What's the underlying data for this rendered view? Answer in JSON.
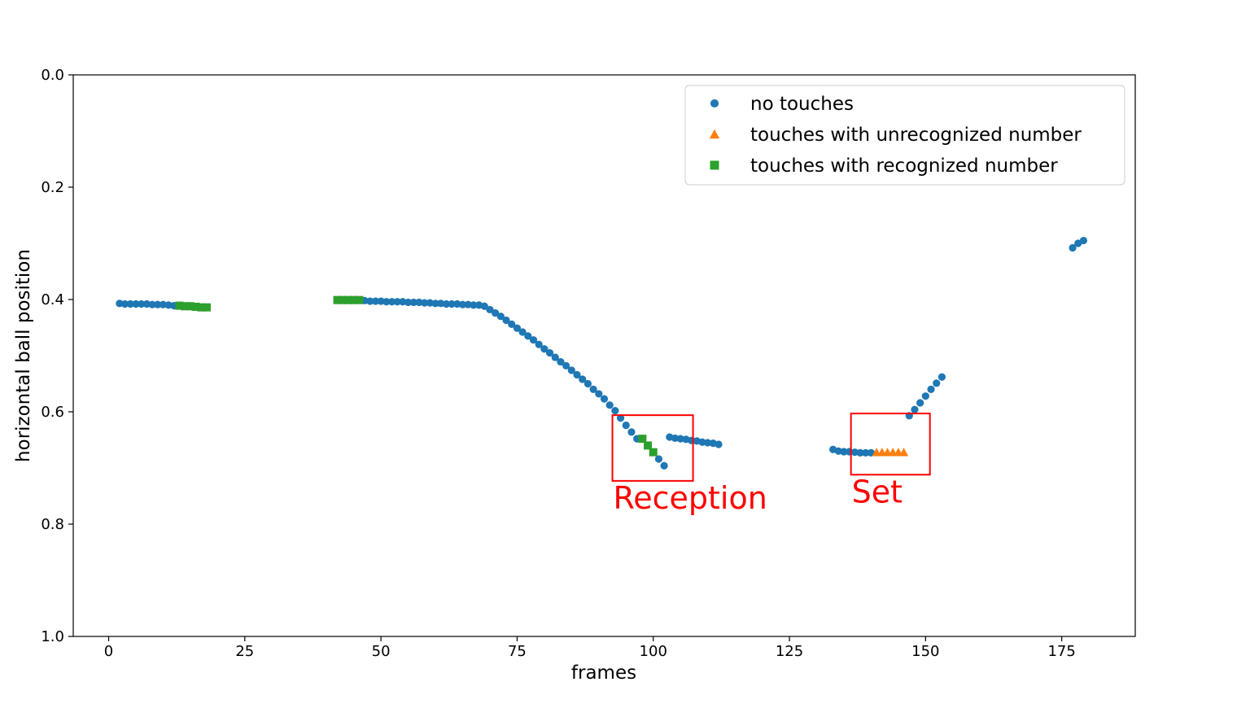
{
  "chart_data": {
    "type": "scatter",
    "title": "",
    "xlabel": "frames",
    "ylabel": "horizontal ball position",
    "xlim": [
      -6.5,
      188.5
    ],
    "ylim": [
      1.0,
      0.0
    ],
    "y_inverted": true,
    "xticks": [
      0,
      25,
      50,
      75,
      100,
      125,
      150,
      175
    ],
    "xtick_labels": [
      "0",
      "25",
      "50",
      "75",
      "100",
      "125",
      "150",
      "175"
    ],
    "yticks": [
      0.0,
      0.2,
      0.4,
      0.6,
      0.8,
      1.0
    ],
    "ytick_labels": [
      "0.0",
      "0.2",
      "0.4",
      "0.6",
      "0.8",
      "1.0"
    ],
    "grid": false,
    "legend_position": "top-right",
    "series": [
      {
        "name": "no touches",
        "marker": "circle",
        "color": "#1f77b4",
        "points": [
          [
            2,
            0.407
          ],
          [
            3,
            0.408
          ],
          [
            4,
            0.408
          ],
          [
            5,
            0.408
          ],
          [
            6,
            0.408
          ],
          [
            7,
            0.408
          ],
          [
            8,
            0.409
          ],
          [
            9,
            0.409
          ],
          [
            10,
            0.409
          ],
          [
            11,
            0.41
          ],
          [
            12,
            0.411
          ],
          [
            47,
            0.402
          ],
          [
            48,
            0.403
          ],
          [
            49,
            0.403
          ],
          [
            50,
            0.403
          ],
          [
            51,
            0.404
          ],
          [
            52,
            0.404
          ],
          [
            53,
            0.404
          ],
          [
            54,
            0.404
          ],
          [
            55,
            0.405
          ],
          [
            56,
            0.405
          ],
          [
            57,
            0.405
          ],
          [
            58,
            0.406
          ],
          [
            59,
            0.406
          ],
          [
            60,
            0.407
          ],
          [
            61,
            0.407
          ],
          [
            62,
            0.408
          ],
          [
            63,
            0.408
          ],
          [
            64,
            0.408
          ],
          [
            65,
            0.409
          ],
          [
            66,
            0.409
          ],
          [
            67,
            0.41
          ],
          [
            68,
            0.41
          ],
          [
            69,
            0.412
          ],
          [
            70,
            0.418
          ],
          [
            71,
            0.424
          ],
          [
            72,
            0.43
          ],
          [
            73,
            0.437
          ],
          [
            74,
            0.444
          ],
          [
            75,
            0.451
          ],
          [
            76,
            0.458
          ],
          [
            77,
            0.465
          ],
          [
            78,
            0.472
          ],
          [
            79,
            0.48
          ],
          [
            80,
            0.488
          ],
          [
            81,
            0.495
          ],
          [
            82,
            0.503
          ],
          [
            83,
            0.511
          ],
          [
            84,
            0.518
          ],
          [
            85,
            0.526
          ],
          [
            86,
            0.534
          ],
          [
            87,
            0.542
          ],
          [
            88,
            0.55
          ],
          [
            89,
            0.56
          ],
          [
            90,
            0.568
          ],
          [
            91,
            0.577
          ],
          [
            92,
            0.588
          ],
          [
            93,
            0.598
          ],
          [
            94,
            0.611
          ],
          [
            95,
            0.624
          ],
          [
            96,
            0.636
          ],
          [
            97,
            0.648
          ],
          [
            101,
            0.684
          ],
          [
            102,
            0.696
          ],
          [
            103,
            0.645
          ],
          [
            104,
            0.647
          ],
          [
            105,
            0.648
          ],
          [
            106,
            0.649
          ],
          [
            107,
            0.651
          ],
          [
            108,
            0.652
          ],
          [
            109,
            0.654
          ],
          [
            110,
            0.655
          ],
          [
            111,
            0.656
          ],
          [
            112,
            0.658
          ],
          [
            133,
            0.667
          ],
          [
            134,
            0.67
          ],
          [
            135,
            0.671
          ],
          [
            136,
            0.671
          ],
          [
            137,
            0.672
          ],
          [
            138,
            0.673
          ],
          [
            139,
            0.673
          ],
          [
            140,
            0.673
          ],
          [
            147,
            0.607
          ],
          [
            148,
            0.596
          ],
          [
            149,
            0.584
          ],
          [
            150,
            0.572
          ],
          [
            151,
            0.56
          ],
          [
            152,
            0.549
          ],
          [
            153,
            0.538
          ],
          [
            177,
            0.308
          ],
          [
            178,
            0.3
          ],
          [
            179,
            0.295
          ]
        ]
      },
      {
        "name": "touches with unrecognized number",
        "marker": "triangle",
        "color": "#ff7f0e",
        "points": [
          [
            141,
            0.672
          ],
          [
            142,
            0.672
          ],
          [
            143,
            0.672
          ],
          [
            144,
            0.672
          ],
          [
            145,
            0.672
          ],
          [
            146,
            0.672
          ]
        ]
      },
      {
        "name": "touches with recognized number",
        "marker": "square",
        "color": "#2ca02c",
        "points": [
          [
            13,
            0.411
          ],
          [
            14,
            0.412
          ],
          [
            15,
            0.412
          ],
          [
            16,
            0.413
          ],
          [
            17,
            0.414
          ],
          [
            18,
            0.414
          ],
          [
            42,
            0.401
          ],
          [
            43,
            0.401
          ],
          [
            44,
            0.401
          ],
          [
            45,
            0.401
          ],
          [
            46,
            0.401
          ],
          [
            98,
            0.648
          ],
          [
            99,
            0.66
          ],
          [
            100,
            0.672
          ]
        ]
      }
    ],
    "annotations": [
      {
        "label": "Reception",
        "color": "#ff0000",
        "box_x": [
          92.5,
          107.3
        ],
        "box_y": [
          0.606,
          0.723
        ]
      },
      {
        "label": "Set",
        "color": "#ff0000",
        "box_x": [
          136.3,
          150.8
        ],
        "box_y": [
          0.603,
          0.712
        ]
      }
    ]
  }
}
